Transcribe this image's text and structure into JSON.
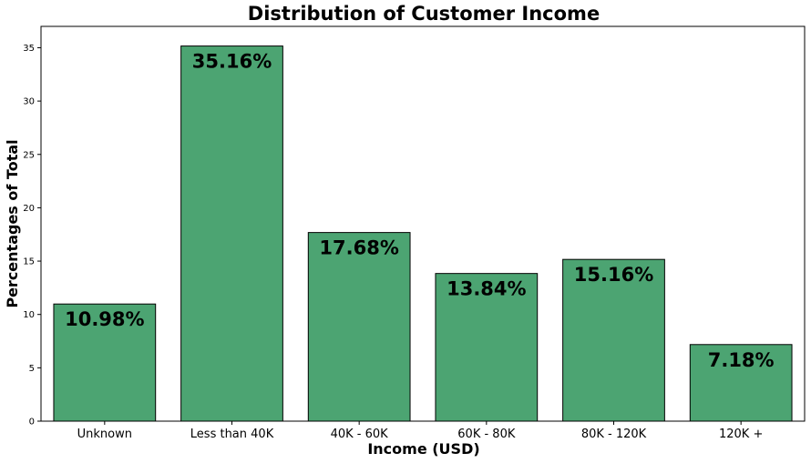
{
  "chart_data": {
    "type": "bar",
    "title": "Distribution of Customer Income",
    "xlabel": "Income (USD)",
    "ylabel": "Percentages of Total",
    "categories": [
      "Unknown",
      "Less than 40K",
      "40K - 60K",
      "60K - 80K",
      "80K - 120K",
      "120K +"
    ],
    "values": [
      10.98,
      35.16,
      17.68,
      13.84,
      15.16,
      7.18
    ],
    "data_labels": [
      "10.98%",
      "35.16%",
      "17.68%",
      "13.84%",
      "15.16%",
      "7.18%"
    ],
    "ylim": [
      0,
      37
    ],
    "yticks": [
      0,
      5,
      10,
      15,
      20,
      25,
      30,
      35
    ],
    "grid": false,
    "legend": "none",
    "colors": {
      "bar": "#4ca472",
      "edge": "#000000"
    }
  }
}
